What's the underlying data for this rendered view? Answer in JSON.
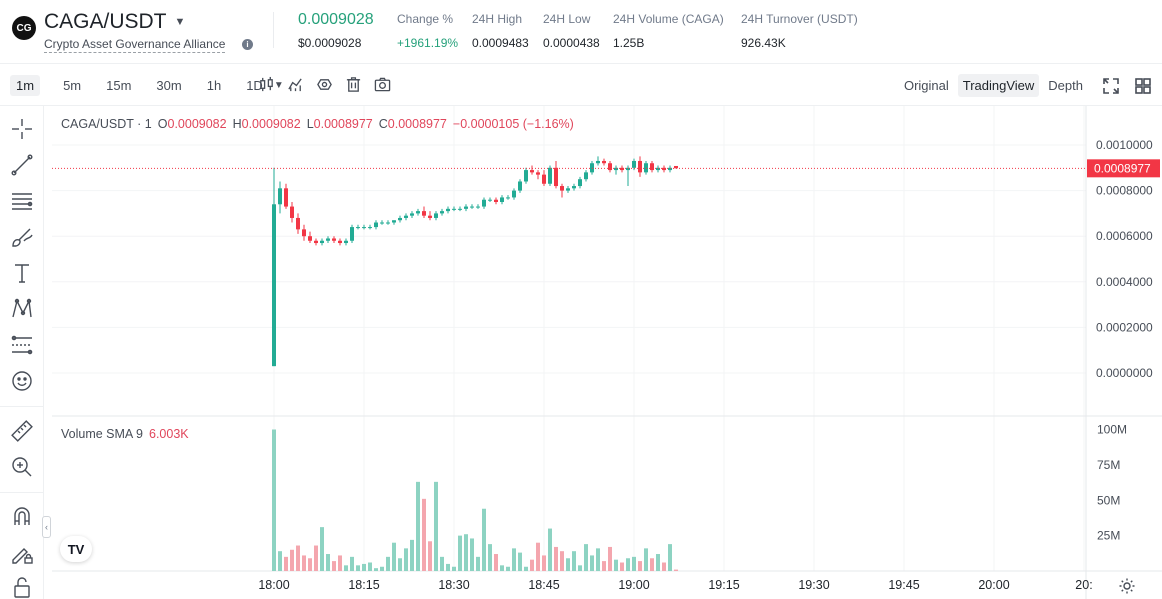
{
  "header": {
    "logo": "CG",
    "pair": "CAGA/USDT",
    "fullname": "Crypto Asset Governance Alliance",
    "info_icon": "i",
    "price": "0.0009028",
    "price_usd": "$0.0009028",
    "stats": [
      {
        "label": "Change %",
        "value": "+1961.19%"
      },
      {
        "label": "24H High",
        "value": "0.0009483"
      },
      {
        "label": "24H Low",
        "value": "0.0000438"
      },
      {
        "label": "24H Volume (CAGA)",
        "value": "1.25B"
      },
      {
        "label": "24H Turnover (USDT)",
        "value": "926.43K"
      }
    ]
  },
  "toolbar": {
    "intervals": [
      "1m",
      "5m",
      "15m",
      "30m",
      "1h",
      "1D"
    ],
    "active_interval": "1m",
    "views": [
      "Original",
      "TradingView",
      "Depth"
    ],
    "active_view": "TradingView"
  },
  "legend": {
    "symbol": "CAGA/USDT · 1",
    "o_label": "O",
    "o": "0.0009082",
    "h_label": "H",
    "h": "0.0009082",
    "l_label": "L",
    "l": "0.0008977",
    "c_label": "C",
    "c": "0.0008977",
    "change": "−0.0000105 (−1.16%)"
  },
  "volume_legend": {
    "label": "Volume SMA 9",
    "value": "6.003K"
  },
  "tv_logo": "TV",
  "colors": {
    "up": "#22ab94",
    "down": "#f23645",
    "accent": "#26a17b"
  },
  "chart_data": {
    "type": "candlestick",
    "price_axis": {
      "ticks": [
        "0.0010000",
        "0.0008000",
        "0.0006000",
        "0.0004000",
        "0.0002000",
        "0.0000000"
      ],
      "current": "0.0008977"
    },
    "volume_axis": {
      "ticks": [
        "100M",
        "75M",
        "50M",
        "25M"
      ]
    },
    "time_axis": {
      "ticks": [
        "18:00",
        "18:15",
        "18:30",
        "18:45",
        "19:00",
        "19:15",
        "19:30",
        "19:45",
        "20:00",
        "20:"
      ]
    },
    "candles": [
      {
        "o": 3e-05,
        "h": 0.0009,
        "l": 3e-05,
        "c": 0.00074,
        "v": 100
      },
      {
        "o": 0.00074,
        "h": 0.00084,
        "l": 0.0007,
        "c": 0.00081,
        "v": 14
      },
      {
        "o": 0.00081,
        "h": 0.00083,
        "l": 0.00072,
        "c": 0.00073,
        "v": 10
      },
      {
        "o": 0.00073,
        "h": 0.00075,
        "l": 0.00066,
        "c": 0.00068,
        "v": 15
      },
      {
        "o": 0.00068,
        "h": 0.0007,
        "l": 0.00061,
        "c": 0.00063,
        "v": 18
      },
      {
        "o": 0.00063,
        "h": 0.00065,
        "l": 0.00058,
        "c": 0.0006,
        "v": 11
      },
      {
        "o": 0.0006,
        "h": 0.00062,
        "l": 0.00057,
        "c": 0.00058,
        "v": 9
      },
      {
        "o": 0.00058,
        "h": 0.00059,
        "l": 0.00056,
        "c": 0.00057,
        "v": 18
      },
      {
        "o": 0.00057,
        "h": 0.00059,
        "l": 0.00056,
        "c": 0.00058,
        "v": 31
      },
      {
        "o": 0.00058,
        "h": 0.0006,
        "l": 0.00057,
        "c": 0.00059,
        "v": 12
      },
      {
        "o": 0.00059,
        "h": 0.0006,
        "l": 0.00057,
        "c": 0.00058,
        "v": 7
      },
      {
        "o": 0.00058,
        "h": 0.00059,
        "l": 0.00056,
        "c": 0.00057,
        "v": 11
      },
      {
        "o": 0.00057,
        "h": 0.00059,
        "l": 0.00056,
        "c": 0.00058,
        "v": 4
      },
      {
        "o": 0.00058,
        "h": 0.00065,
        "l": 0.00057,
        "c": 0.00064,
        "v": 10
      },
      {
        "o": 0.00064,
        "h": 0.00065,
        "l": 0.00063,
        "c": 0.00064,
        "v": 4
      },
      {
        "o": 0.00064,
        "h": 0.00065,
        "l": 0.00063,
        "c": 0.00064,
        "v": 5
      },
      {
        "o": 0.00064,
        "h": 0.00065,
        "l": 0.00063,
        "c": 0.00064,
        "v": 6
      },
      {
        "o": 0.00064,
        "h": 0.00067,
        "l": 0.00063,
        "c": 0.00066,
        "v": 2
      },
      {
        "o": 0.00066,
        "h": 0.00067,
        "l": 0.00065,
        "c": 0.00066,
        "v": 3
      },
      {
        "o": 0.00066,
        "h": 0.00067,
        "l": 0.00065,
        "c": 0.00066,
        "v": 10
      },
      {
        "o": 0.00066,
        "h": 0.00067,
        "l": 0.00065,
        "c": 0.00067,
        "v": 20
      },
      {
        "o": 0.00067,
        "h": 0.00069,
        "l": 0.00066,
        "c": 0.00068,
        "v": 9
      },
      {
        "o": 0.00068,
        "h": 0.0007,
        "l": 0.00067,
        "c": 0.00069,
        "v": 16
      },
      {
        "o": 0.00069,
        "h": 0.00071,
        "l": 0.00068,
        "c": 0.0007,
        "v": 22
      },
      {
        "o": 0.0007,
        "h": 0.00072,
        "l": 0.00069,
        "c": 0.00071,
        "v": 63
      },
      {
        "o": 0.00071,
        "h": 0.00073,
        "l": 0.00068,
        "c": 0.00069,
        "v": 51
      },
      {
        "o": 0.00069,
        "h": 0.00071,
        "l": 0.00067,
        "c": 0.00068,
        "v": 21
      },
      {
        "o": 0.00068,
        "h": 0.00071,
        "l": 0.00067,
        "c": 0.0007,
        "v": 63
      },
      {
        "o": 0.0007,
        "h": 0.00072,
        "l": 0.00069,
        "c": 0.00071,
        "v": 10
      },
      {
        "o": 0.00071,
        "h": 0.00073,
        "l": 0.0007,
        "c": 0.00072,
        "v": 5
      },
      {
        "o": 0.00072,
        "h": 0.00073,
        "l": 0.00071,
        "c": 0.00072,
        "v": 3
      },
      {
        "o": 0.00072,
        "h": 0.00073,
        "l": 0.00071,
        "c": 0.00072,
        "v": 25
      },
      {
        "o": 0.00072,
        "h": 0.00074,
        "l": 0.00071,
        "c": 0.00073,
        "v": 26
      },
      {
        "o": 0.00073,
        "h": 0.00074,
        "l": 0.00072,
        "c": 0.00073,
        "v": 23
      },
      {
        "o": 0.00073,
        "h": 0.00074,
        "l": 0.00072,
        "c": 0.00073,
        "v": 10
      },
      {
        "o": 0.00073,
        "h": 0.00077,
        "l": 0.00072,
        "c": 0.00076,
        "v": 44
      },
      {
        "o": 0.00076,
        "h": 0.00077,
        "l": 0.00075,
        "c": 0.00076,
        "v": 19
      },
      {
        "o": 0.00076,
        "h": 0.00077,
        "l": 0.00074,
        "c": 0.00075,
        "v": 12
      },
      {
        "o": 0.00075,
        "h": 0.00078,
        "l": 0.00074,
        "c": 0.00077,
        "v": 4
      },
      {
        "o": 0.00077,
        "h": 0.00078,
        "l": 0.00076,
        "c": 0.00077,
        "v": 3
      },
      {
        "o": 0.00077,
        "h": 0.00081,
        "l": 0.00076,
        "c": 0.0008,
        "v": 16
      },
      {
        "o": 0.0008,
        "h": 0.00085,
        "l": 0.00079,
        "c": 0.00084,
        "v": 13
      },
      {
        "o": 0.00084,
        "h": 0.0009,
        "l": 0.00083,
        "c": 0.00089,
        "v": 3
      },
      {
        "o": 0.00089,
        "h": 0.00091,
        "l": 0.00087,
        "c": 0.00088,
        "v": 8
      },
      {
        "o": 0.00088,
        "h": 0.00089,
        "l": 0.00085,
        "c": 0.00087,
        "v": 20
      },
      {
        "o": 0.00087,
        "h": 0.00089,
        "l": 0.00082,
        "c": 0.00083,
        "v": 11
      },
      {
        "o": 0.00083,
        "h": 0.00091,
        "l": 0.00082,
        "c": 0.0009,
        "v": 30
      },
      {
        "o": 0.0009,
        "h": 0.00093,
        "l": 0.00081,
        "c": 0.00082,
        "v": 17
      },
      {
        "o": 0.00082,
        "h": 0.00083,
        "l": 0.00077,
        "c": 0.0008,
        "v": 14
      },
      {
        "o": 0.0008,
        "h": 0.00082,
        "l": 0.00079,
        "c": 0.00081,
        "v": 9
      },
      {
        "o": 0.00081,
        "h": 0.00083,
        "l": 0.0008,
        "c": 0.00082,
        "v": 14
      },
      {
        "o": 0.00082,
        "h": 0.00086,
        "l": 0.00081,
        "c": 0.00085,
        "v": 4
      },
      {
        "o": 0.00085,
        "h": 0.00089,
        "l": 0.00084,
        "c": 0.00088,
        "v": 19
      },
      {
        "o": 0.00088,
        "h": 0.00093,
        "l": 0.00087,
        "c": 0.00092,
        "v": 11
      },
      {
        "o": 0.00092,
        "h": 0.00095,
        "l": 0.00091,
        "c": 0.00093,
        "v": 16
      },
      {
        "o": 0.00093,
        "h": 0.00094,
        "l": 0.00091,
        "c": 0.00092,
        "v": 7
      },
      {
        "o": 0.00092,
        "h": 0.00093,
        "l": 0.00088,
        "c": 0.00089,
        "v": 17
      },
      {
        "o": 0.00089,
        "h": 0.00091,
        "l": 0.00087,
        "c": 0.0009,
        "v": 8
      },
      {
        "o": 0.0009,
        "h": 0.00091,
        "l": 0.00088,
        "c": 0.00089,
        "v": 6
      },
      {
        "o": 0.00089,
        "h": 0.00091,
        "l": 0.00082,
        "c": 0.0009,
        "v": 9
      },
      {
        "o": 0.0009,
        "h": 0.00094,
        "l": 0.00089,
        "c": 0.00093,
        "v": 10
      },
      {
        "o": 0.00093,
        "h": 0.00095,
        "l": 0.00086,
        "c": 0.00088,
        "v": 7
      },
      {
        "o": 0.00088,
        "h": 0.00093,
        "l": 0.00087,
        "c": 0.00092,
        "v": 16
      },
      {
        "o": 0.00092,
        "h": 0.00093,
        "l": 0.00088,
        "c": 0.00089,
        "v": 9
      },
      {
        "o": 0.00089,
        "h": 0.00091,
        "l": 0.00088,
        "c": 0.0009,
        "v": 12
      },
      {
        "o": 0.0009,
        "h": 0.00091,
        "l": 0.00088,
        "c": 0.00089,
        "v": 6
      },
      {
        "o": 0.00089,
        "h": 0.00091,
        "l": 0.00088,
        "c": 0.0009,
        "v": 19
      },
      {
        "o": 0.000908,
        "h": 0.000908,
        "l": 0.000897,
        "c": 0.000898,
        "v": 1
      }
    ]
  }
}
